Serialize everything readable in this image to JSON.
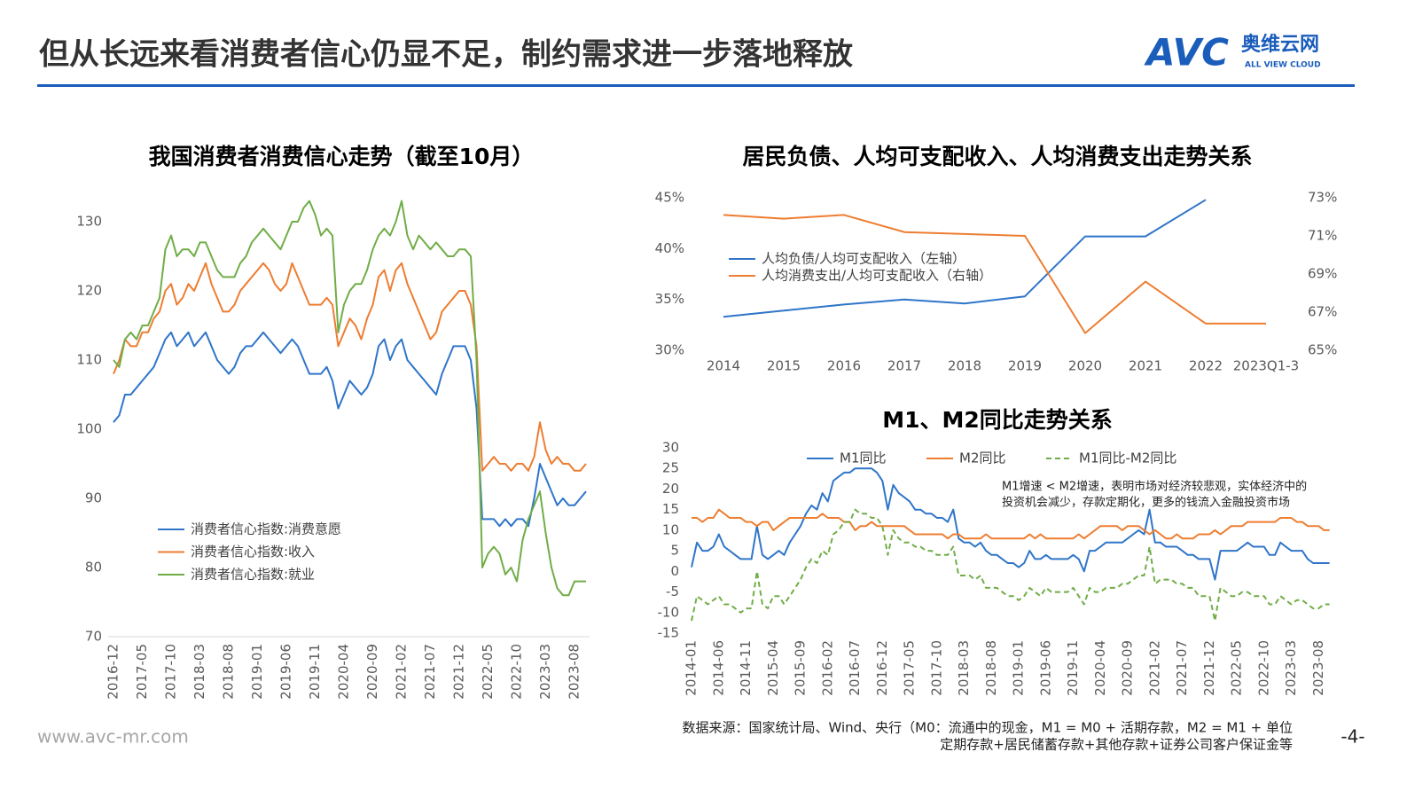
{
  "header": {
    "title": "但从长远来看消费者信心仍显不足，制约需求进一步落地释放"
  },
  "logo": {
    "mark": "AVC",
    "name": "奥维云网",
    "tagline": "ALL VIEW CLOUD"
  },
  "footer": {
    "website": "www.avc-mr.com",
    "source": [
      "数据来源：国家统计局、Wind、央行（M0：流通中的现金，M1 = M0 + 活期存款，M2 = M1 + 单位",
      "定期存款+居民储蓄存款+其他存款+证券公司客户保证金等"
    ],
    "page": "-4-"
  },
  "chart_data": [
    {
      "type": "line",
      "title": "我国消费者消费信心走势（截至10月）",
      "categories": [
        "2016-12",
        null,
        null,
        null,
        null,
        "2017-05",
        null,
        null,
        null,
        null,
        "2017-10",
        null,
        null,
        null,
        null,
        "2018-03",
        null,
        null,
        null,
        null,
        "2018-08",
        null,
        null,
        null,
        null,
        "2019-01",
        null,
        null,
        null,
        null,
        "2019-06",
        null,
        null,
        null,
        null,
        "2019-11",
        null,
        null,
        null,
        null,
        "2020-04",
        null,
        null,
        null,
        null,
        "2020-09",
        null,
        null,
        null,
        null,
        "2021-02",
        null,
        null,
        null,
        null,
        "2021-07",
        null,
        null,
        null,
        null,
        "2021-12",
        null,
        null,
        null,
        null,
        "2022-05",
        null,
        null,
        null,
        null,
        "2022-10",
        null,
        null,
        null,
        null,
        "2023-03",
        null,
        null,
        null,
        null,
        "2023-08",
        null,
        null
      ],
      "series": [
        {
          "name": "消费者信心指数:消费意愿",
          "color": "#2f75c9",
          "values": [
            101,
            102,
            105,
            105,
            106,
            107,
            108,
            109,
            111,
            113,
            114,
            112,
            113,
            114,
            112,
            113,
            114,
            112,
            110,
            109,
            108,
            109,
            111,
            112,
            112,
            113,
            114,
            113,
            112,
            111,
            112,
            113,
            112,
            110,
            108,
            108,
            108,
            109,
            107,
            103,
            105,
            107,
            106,
            105,
            106,
            108,
            112,
            113,
            110,
            112,
            113,
            110,
            109,
            108,
            107,
            106,
            105,
            108,
            110,
            112,
            112,
            112,
            110,
            103,
            87,
            87,
            87,
            86,
            87,
            86,
            87,
            87,
            86,
            90,
            95,
            93,
            91,
            89,
            90,
            89,
            89,
            90,
            91
          ]
        },
        {
          "name": "消费者信心指数:收入",
          "color": "#ed7d31",
          "values": [
            108,
            110,
            113,
            112,
            112,
            114,
            114,
            116,
            117,
            120,
            121,
            118,
            119,
            121,
            120,
            122,
            124,
            121,
            119,
            117,
            117,
            118,
            120,
            121,
            122,
            123,
            124,
            123,
            121,
            120,
            121,
            124,
            122,
            120,
            118,
            118,
            118,
            119,
            118,
            112,
            114,
            116,
            115,
            113,
            116,
            118,
            122,
            123,
            120,
            123,
            124,
            121,
            119,
            117,
            115,
            113,
            114,
            117,
            118,
            119,
            120,
            120,
            118,
            112,
            94,
            95,
            96,
            95,
            95,
            94,
            95,
            95,
            94,
            96,
            101,
            97,
            95,
            96,
            95,
            95,
            94,
            94,
            95
          ]
        },
        {
          "name": "消费者信心指数:就业",
          "color": "#70ad47",
          "values": [
            110,
            109,
            113,
            114,
            113,
            115,
            115,
            117,
            119,
            126,
            128,
            125,
            126,
            126,
            125,
            127,
            127,
            125,
            123,
            122,
            122,
            122,
            124,
            125,
            127,
            128,
            129,
            128,
            127,
            126,
            128,
            130,
            130,
            132,
            133,
            131,
            128,
            129,
            128,
            114,
            118,
            120,
            121,
            121,
            123,
            126,
            128,
            129,
            128,
            130,
            133,
            128,
            126,
            128,
            127,
            126,
            127,
            126,
            125,
            125,
            126,
            126,
            125,
            110,
            80,
            82,
            83,
            82,
            79,
            80,
            78,
            84,
            87,
            89,
            91,
            85,
            80,
            77,
            76,
            76,
            78,
            78,
            78
          ]
        }
      ],
      "ylim": [
        70,
        134
      ],
      "yticks": [
        70,
        80,
        90,
        100,
        110,
        120,
        130
      ],
      "legend": "lower left"
    },
    {
      "type": "line",
      "title": "居民负债、人均可支配收入、人均消费支出走势关系",
      "categories": [
        "2014",
        "2015",
        "2016",
        "2017",
        "2018",
        "2019",
        "2020",
        "2021",
        "2022",
        "2023Q1-3"
      ],
      "series": [
        {
          "name": "人均负债/人均可支配收入（左轴）",
          "color": "#2f75c9",
          "values": [
            33.3,
            33.9,
            34.5,
            35.0,
            34.6,
            35.3,
            41.2,
            41.2,
            44.8,
            null
          ]
        },
        {
          "name": "人均消费支出/人均可支配收入（右轴）",
          "color": "#ed7d31",
          "axis": "y2",
          "values": [
            72.1,
            71.9,
            72.1,
            71.2,
            71.1,
            71.0,
            65.9,
            68.6,
            66.4,
            66.4
          ]
        }
      ],
      "ylim": [
        30,
        45
      ],
      "yticks": [
        {
          "value": 30,
          "label": "30%"
        },
        {
          "value": 35,
          "label": "35%"
        },
        {
          "value": 40,
          "label": "40%"
        },
        {
          "value": 45,
          "label": "45%"
        }
      ],
      "y2lim": [
        65,
        73
      ],
      "y2ticks": [
        {
          "value": 65,
          "label": "65%"
        },
        {
          "value": 67,
          "label": "67%"
        },
        {
          "value": 69,
          "label": "69%"
        },
        {
          "value": 71,
          "label": "71%"
        },
        {
          "value": 73,
          "label": "73%"
        }
      ],
      "legend": "upper left"
    },
    {
      "type": "line",
      "title": "M1、M2同比走势关系",
      "categories": [
        "2014-01",
        null,
        null,
        null,
        null,
        "2014-06",
        null,
        null,
        null,
        null,
        "2014-11",
        null,
        null,
        null,
        null,
        "2015-04",
        null,
        null,
        null,
        null,
        "2015-09",
        null,
        null,
        null,
        null,
        "2016-02",
        null,
        null,
        null,
        null,
        "2016-07",
        null,
        null,
        null,
        null,
        "2016-12",
        null,
        null,
        null,
        null,
        "2017-05",
        null,
        null,
        null,
        null,
        "2017-10",
        null,
        null,
        null,
        null,
        "2018-03",
        null,
        null,
        null,
        null,
        "2018-08",
        null,
        null,
        null,
        null,
        "2019-01",
        null,
        null,
        null,
        null,
        "2019-06",
        null,
        null,
        null,
        null,
        "2019-11",
        null,
        null,
        null,
        null,
        "2020-04",
        null,
        null,
        null,
        null,
        "2020-09",
        null,
        null,
        null,
        null,
        "2021-02",
        null,
        null,
        null,
        null,
        "2021-07",
        null,
        null,
        null,
        null,
        "2021-12",
        null,
        null,
        null,
        null,
        "2022-05",
        null,
        null,
        null,
        null,
        "2022-10",
        null,
        null,
        null,
        null,
        "2023-03",
        null,
        null,
        null,
        null,
        "2023-08",
        null,
        null
      ],
      "series": [
        {
          "name": "M1同比",
          "color": "#2f75c9",
          "values": [
            1,
            7,
            5,
            5,
            6,
            9,
            6,
            5,
            4,
            3,
            3,
            3,
            11,
            4,
            3,
            4,
            5,
            4,
            7,
            9,
            11,
            14,
            16,
            15,
            19,
            17,
            22,
            23,
            24,
            24,
            25,
            25,
            25,
            25,
            24,
            22,
            15,
            21,
            19,
            18,
            17,
            15,
            15,
            14,
            14,
            13,
            13,
            12,
            15,
            8,
            7,
            7,
            6,
            7,
            5,
            4,
            4,
            3,
            2,
            2,
            1,
            2,
            5,
            3,
            3,
            4,
            3,
            3,
            3,
            3,
            4,
            3,
            0,
            5,
            5,
            6,
            7,
            7,
            7,
            7,
            8,
            9,
            10,
            9,
            15,
            7,
            7,
            6,
            6,
            6,
            5,
            4,
            4,
            3,
            3,
            3,
            -2,
            5,
            5,
            5,
            5,
            6,
            7,
            6,
            6,
            6,
            4,
            4,
            7,
            6,
            5,
            5,
            5,
            3,
            2,
            2,
            2,
            2
          ]
        },
        {
          "name": "M2同比",
          "color": "#ed7d31",
          "values": [
            13,
            13,
            12,
            13,
            13,
            15,
            14,
            13,
            13,
            13,
            12,
            12,
            11,
            12,
            12,
            10,
            11,
            12,
            13,
            13,
            13,
            13,
            13,
            13,
            14,
            13,
            13,
            13,
            12,
            12,
            10,
            11,
            11,
            12,
            11,
            11,
            11,
            11,
            11,
            11,
            10,
            9,
            9,
            9,
            9,
            9,
            9,
            8,
            9,
            9,
            8,
            8,
            8,
            8,
            9,
            8,
            8,
            8,
            8,
            8,
            8,
            8,
            9,
            8,
            9,
            8,
            8,
            8,
            8,
            8,
            8,
            9,
            8,
            9,
            10,
            11,
            11,
            11,
            11,
            10,
            11,
            11,
            11,
            10,
            9,
            10,
            9,
            8,
            8,
            9,
            8,
            8,
            8,
            9,
            9,
            9,
            10,
            9,
            10,
            11,
            11,
            11,
            12,
            12,
            12,
            12,
            12,
            12,
            13,
            13,
            13,
            12,
            12,
            11,
            11,
            11,
            10,
            10
          ]
        },
        {
          "name": "M1同比-M2同比",
          "color": "#70ad47",
          "line_style": "dashed",
          "values": [
            -12,
            -6,
            -7,
            -8,
            -7,
            -6,
            -8,
            -8,
            -9,
            -10,
            -9,
            -9,
            0,
            -8,
            -9,
            -6,
            -6,
            -8,
            -6,
            -4,
            -2,
            1,
            3,
            2,
            5,
            4,
            9,
            10,
            12,
            12,
            15,
            14,
            14,
            13,
            13,
            11,
            4,
            10,
            8,
            7,
            7,
            6,
            6,
            5,
            5,
            4,
            4,
            4,
            6,
            -1,
            -1,
            -1,
            -2,
            -1,
            -4,
            -4,
            -4,
            -5,
            -6,
            -6,
            -7,
            -6,
            -4,
            -5,
            -6,
            -4,
            -5,
            -5,
            -5,
            -5,
            -4,
            -6,
            -8,
            -4,
            -5,
            -5,
            -4,
            -4,
            -4,
            -3,
            -3,
            -2,
            -1,
            -1,
            6,
            -3,
            -2,
            -2,
            -2,
            -3,
            -3,
            -4,
            -4,
            -6,
            -6,
            -6,
            -12,
            -4,
            -5,
            -6,
            -6,
            -5,
            -5,
            -6,
            -6,
            -6,
            -8,
            -8,
            -6,
            -7,
            -8,
            -7,
            -7,
            -8,
            -9,
            -9,
            -8,
            -8
          ]
        }
      ],
      "ylim": [
        -15,
        30
      ],
      "yticks": [
        -15,
        -10,
        -5,
        0,
        5,
        10,
        15,
        20,
        25,
        30
      ],
      "legend": "top",
      "annotation": [
        "M1增速 < M2增速，表明市场对经济较悲观，实体经济中的",
        "投资机会减少，存款定期化，更多的钱流入金融投资市场"
      ]
    }
  ]
}
